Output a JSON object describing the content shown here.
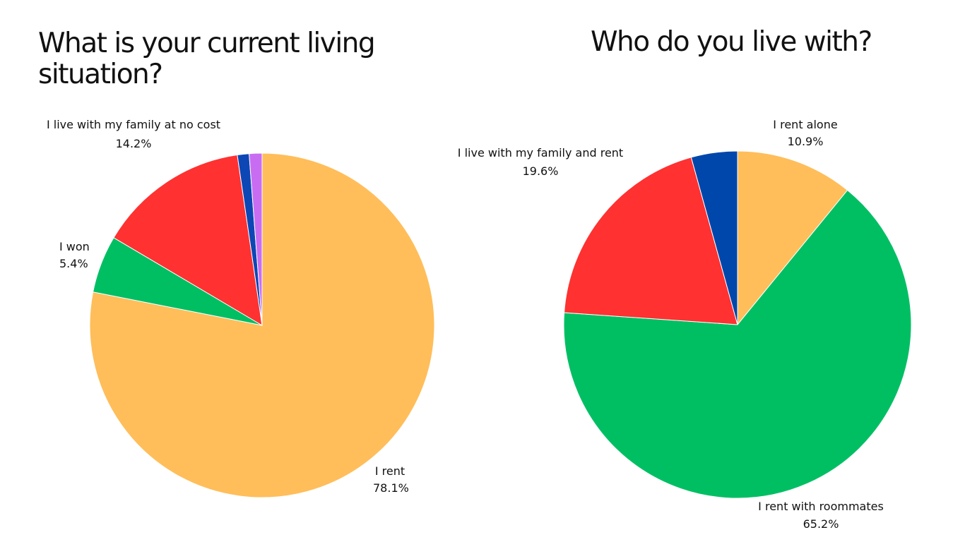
{
  "chart_data": [
    {
      "type": "pie",
      "title": "What is your current living situation?",
      "categories": [
        "I rent",
        "I won",
        "I live with my family at no cost",
        "",
        ""
      ],
      "values": [
        78.1,
        5.4,
        14.2,
        1.1,
        1.2
      ],
      "value_labels": [
        "78.1%",
        "5.4%",
        "14.2%",
        "",
        ""
      ],
      "colors": [
        "#FFBE5A",
        "#00BF63",
        "#FF3131",
        "#0D47B5",
        "#C86DF2"
      ],
      "start_angle_deg": 0,
      "direction": "clockwise",
      "legend": "none"
    },
    {
      "type": "pie",
      "title": "Who do you live with?",
      "categories": [
        "I rent alone",
        "I rent with roommates",
        "I live with my family and rent",
        ""
      ],
      "values": [
        10.9,
        65.2,
        19.6,
        4.3
      ],
      "value_labels": [
        "10.9%",
        "65.2%",
        "19.6%",
        ""
      ],
      "colors": [
        "#FFBE5A",
        "#00BF63",
        "#FF3131",
        "#0047AB"
      ],
      "start_angle_deg": 0,
      "direction": "clockwise",
      "legend": "none"
    }
  ]
}
